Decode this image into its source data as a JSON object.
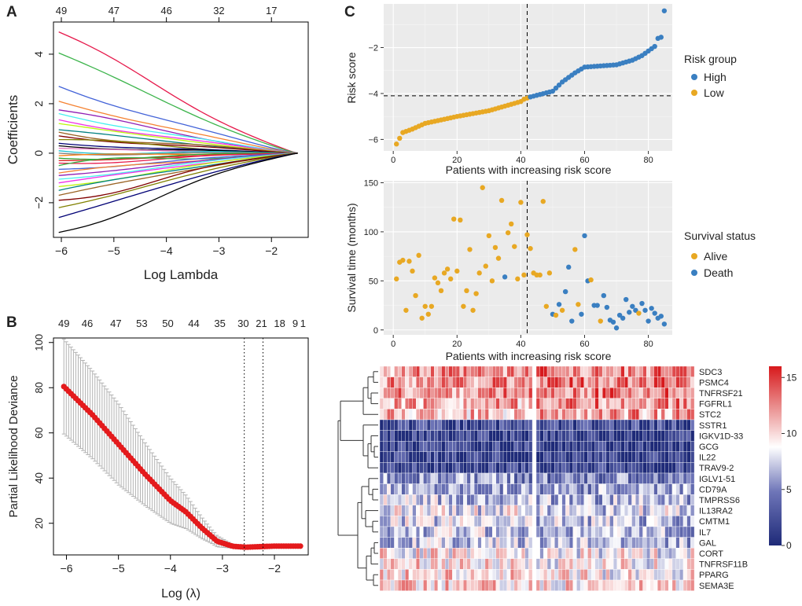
{
  "colors": {
    "coef_palette": [
      "#e6194b",
      "#3cb44b",
      "#4363d8",
      "#f58231",
      "#911eb4",
      "#46f0f0",
      "#f032e6",
      "#bcf60c",
      "#008080",
      "#9a6324",
      "#800000",
      "#808000",
      "#000075",
      "#000000",
      "#e377c2",
      "#17becf",
      "#7f7f7f",
      "#ff7f0e",
      "#2ca02c",
      "#d62728"
    ],
    "cv_point": "#e41a1c",
    "cv_bar": "#b3b3b3",
    "high": "#3a7fc1",
    "low": "#e8a823",
    "alive": "#e8a823",
    "death": "#3a7fc1",
    "heat_low": "#1e2a78",
    "heat_mid": "#ffffff",
    "heat_high": "#d7191c"
  },
  "chart_data": [
    {
      "id": "A",
      "type": "line",
      "panel_label": "A",
      "xlabel": "Log Lambda",
      "ylabel": "Coefficients",
      "xlim": [
        -6.15,
        -1.3
      ],
      "ylim": [
        -3.4,
        5.3
      ],
      "x_ticks": [
        -6,
        -5,
        -4,
        -3,
        -2
      ],
      "y_ticks": [
        -2,
        0,
        2,
        4
      ],
      "top_ticks": [
        {
          "x": -6,
          "label": "49"
        },
        {
          "x": -5,
          "label": "47"
        },
        {
          "x": -4,
          "label": "46"
        },
        {
          "x": -3,
          "label": "32"
        },
        {
          "x": -2,
          "label": "17"
        }
      ],
      "x_start": -6.05,
      "x_end": -1.5,
      "series_start_values": [
        4.9,
        4.05,
        2.7,
        2.1,
        1.75,
        1.6,
        1.35,
        1.2,
        0.95,
        0.85,
        0.7,
        0.55,
        0.4,
        0.3,
        0.2,
        0.1,
        0.0,
        -0.1,
        -0.2,
        -0.3,
        -0.4,
        -0.5,
        -0.65,
        -0.8,
        -0.9,
        -1.05,
        -1.2,
        -1.35,
        -1.5,
        -1.7,
        -1.9,
        -2.2,
        -2.6,
        -3.2
      ]
    },
    {
      "id": "B",
      "type": "scatter",
      "panel_label": "B",
      "xlabel": "Log (λ)",
      "ylabel": "Partial Likelihood Deviance",
      "xlim": [
        -6.25,
        -1.35
      ],
      "ylim": [
        6,
        102
      ],
      "x_ticks": [
        -6,
        -5,
        -4,
        -3,
        -2
      ],
      "y_ticks": [
        20,
        40,
        60,
        80,
        100
      ],
      "top_ticks": [
        {
          "x": -6.05,
          "label": "49"
        },
        {
          "x": -5.6,
          "label": "46"
        },
        {
          "x": -5.05,
          "label": "47"
        },
        {
          "x": -4.55,
          "label": "53"
        },
        {
          "x": -4.05,
          "label": "50"
        },
        {
          "x": -3.55,
          "label": "44"
        },
        {
          "x": -3.05,
          "label": "35"
        },
        {
          "x": -2.6,
          "label": "30"
        },
        {
          "x": -2.25,
          "label": "21"
        },
        {
          "x": -1.9,
          "label": "18"
        },
        {
          "x": -1.6,
          "label": "9"
        },
        {
          "x": -1.45,
          "label": "1"
        }
      ],
      "vlines": [
        -2.58,
        -2.22
      ],
      "curve": [
        {
          "x": -6.05,
          "y": 80.5
        },
        {
          "x": -5.5,
          "y": 68
        },
        {
          "x": -5.0,
          "y": 55
        },
        {
          "x": -4.5,
          "y": 42
        },
        {
          "x": -4.0,
          "y": 30
        },
        {
          "x": -3.7,
          "y": 25
        },
        {
          "x": -3.4,
          "y": 18
        },
        {
          "x": -3.1,
          "y": 12
        },
        {
          "x": -2.8,
          "y": 9.8
        },
        {
          "x": -2.55,
          "y": 9.4
        },
        {
          "x": -2.0,
          "y": 9.9
        },
        {
          "x": -1.5,
          "y": 9.9
        }
      ],
      "error_halfwidth": [
        {
          "x": -6.05,
          "e": 21
        },
        {
          "x": -5.0,
          "e": 18
        },
        {
          "x": -4.0,
          "e": 10
        },
        {
          "x": -3.2,
          "e": 3
        },
        {
          "x": -2.8,
          "e": 0.8
        },
        {
          "x": -1.5,
          "e": 0.6
        }
      ]
    },
    {
      "id": "C-risk",
      "type": "scatter",
      "panel_label": "C",
      "xlabel": "Patients with increasing risk score",
      "ylabel": "Risk score",
      "xlim": [
        -3,
        87.5
      ],
      "ylim": [
        -6.5,
        -0.1
      ],
      "x_ticks": [
        0,
        20,
        40,
        60,
        80
      ],
      "y_ticks": [
        -6,
        -4,
        -2
      ],
      "cutoff_x": 42,
      "cutoff_y": -4.1,
      "legend_title": "Risk group",
      "legend": [
        "High",
        "Low"
      ],
      "anchors": [
        {
          "i": 1,
          "y": -6.2
        },
        {
          "i": 2,
          "y": -5.95
        },
        {
          "i": 3,
          "y": -5.7
        },
        {
          "i": 6,
          "y": -5.55
        },
        {
          "i": 10,
          "y": -5.3
        },
        {
          "i": 20,
          "y": -5.0
        },
        {
          "i": 30,
          "y": -4.75
        },
        {
          "i": 40,
          "y": -4.35
        },
        {
          "i": 41,
          "y": -4.25
        },
        {
          "i": 43,
          "y": -4.15
        },
        {
          "i": 50,
          "y": -3.9
        },
        {
          "i": 53,
          "y": -3.5
        },
        {
          "i": 57,
          "y": -3.1
        },
        {
          "i": 60,
          "y": -2.85
        },
        {
          "i": 70,
          "y": -2.75
        },
        {
          "i": 75,
          "y": -2.55
        },
        {
          "i": 78,
          "y": -2.35
        },
        {
          "i": 80,
          "y": -2.15
        },
        {
          "i": 82,
          "y": -1.95
        },
        {
          "i": 83,
          "y": -1.6
        },
        {
          "i": 84,
          "y": -1.55
        },
        {
          "i": 85,
          "y": -0.4
        }
      ]
    },
    {
      "id": "C-survival",
      "type": "scatter",
      "xlabel": "Patients with increasing risk score",
      "ylabel": "Survival time (months)",
      "xlim": [
        -3,
        87.5
      ],
      "ylim": [
        -5,
        152
      ],
      "x_ticks": [
        0,
        20,
        40,
        60,
        80
      ],
      "y_ticks": [
        0,
        50,
        100,
        150
      ],
      "cutoff_x": 42,
      "legend_title": "Survival status",
      "legend": [
        "Alive",
        "Death"
      ],
      "points": [
        {
          "x": 1,
          "y": 52,
          "s": "Alive"
        },
        {
          "x": 2,
          "y": 69,
          "s": "Alive"
        },
        {
          "x": 3,
          "y": 71,
          "s": "Alive"
        },
        {
          "x": 4,
          "y": 20,
          "s": "Alive"
        },
        {
          "x": 5,
          "y": 70,
          "s": "Alive"
        },
        {
          "x": 6,
          "y": 60,
          "s": "Alive"
        },
        {
          "x": 7,
          "y": 35,
          "s": "Alive"
        },
        {
          "x": 8,
          "y": 76,
          "s": "Alive"
        },
        {
          "x": 9,
          "y": 12,
          "s": "Alive"
        },
        {
          "x": 10,
          "y": 24,
          "s": "Alive"
        },
        {
          "x": 11,
          "y": 16,
          "s": "Alive"
        },
        {
          "x": 12,
          "y": 24,
          "s": "Alive"
        },
        {
          "x": 13,
          "y": 53,
          "s": "Alive"
        },
        {
          "x": 14,
          "y": 48,
          "s": "Alive"
        },
        {
          "x": 15,
          "y": 40,
          "s": "Alive"
        },
        {
          "x": 16,
          "y": 58,
          "s": "Alive"
        },
        {
          "x": 17,
          "y": 62,
          "s": "Alive"
        },
        {
          "x": 18,
          "y": 52,
          "s": "Alive"
        },
        {
          "x": 19,
          "y": 113,
          "s": "Alive"
        },
        {
          "x": 20,
          "y": 60,
          "s": "Alive"
        },
        {
          "x": 21,
          "y": 112,
          "s": "Alive"
        },
        {
          "x": 22,
          "y": 24,
          "s": "Alive"
        },
        {
          "x": 23,
          "y": 40,
          "s": "Alive"
        },
        {
          "x": 24,
          "y": 82,
          "s": "Alive"
        },
        {
          "x": 25,
          "y": 20,
          "s": "Alive"
        },
        {
          "x": 26,
          "y": 37,
          "s": "Alive"
        },
        {
          "x": 27,
          "y": 58,
          "s": "Alive"
        },
        {
          "x": 28,
          "y": 145,
          "s": "Alive"
        },
        {
          "x": 29,
          "y": 65,
          "s": "Alive"
        },
        {
          "x": 30,
          "y": 96,
          "s": "Alive"
        },
        {
          "x": 31,
          "y": 50,
          "s": "Alive"
        },
        {
          "x": 32,
          "y": 84,
          "s": "Alive"
        },
        {
          "x": 33,
          "y": 73,
          "s": "Alive"
        },
        {
          "x": 34,
          "y": 132,
          "s": "Alive"
        },
        {
          "x": 35,
          "y": 54,
          "s": "Death"
        },
        {
          "x": 36,
          "y": 99,
          "s": "Alive"
        },
        {
          "x": 37,
          "y": 108,
          "s": "Alive"
        },
        {
          "x": 38,
          "y": 85,
          "s": "Alive"
        },
        {
          "x": 39,
          "y": 52,
          "s": "Alive"
        },
        {
          "x": 40,
          "y": 130,
          "s": "Alive"
        },
        {
          "x": 41,
          "y": 56,
          "s": "Alive"
        },
        {
          "x": 42,
          "y": 97,
          "s": "Alive"
        },
        {
          "x": 43,
          "y": 83,
          "s": "Alive"
        },
        {
          "x": 44,
          "y": 58,
          "s": "Alive"
        },
        {
          "x": 45,
          "y": 56,
          "s": "Alive"
        },
        {
          "x": 46,
          "y": 56,
          "s": "Alive"
        },
        {
          "x": 47,
          "y": 131,
          "s": "Alive"
        },
        {
          "x": 48,
          "y": 24,
          "s": "Alive"
        },
        {
          "x": 49,
          "y": 58,
          "s": "Alive"
        },
        {
          "x": 50,
          "y": 16,
          "s": "Death"
        },
        {
          "x": 51,
          "y": 15,
          "s": "Alive"
        },
        {
          "x": 52,
          "y": 26,
          "s": "Death"
        },
        {
          "x": 53,
          "y": 20,
          "s": "Alive"
        },
        {
          "x": 54,
          "y": 39,
          "s": "Death"
        },
        {
          "x": 55,
          "y": 64,
          "s": "Death"
        },
        {
          "x": 56,
          "y": 9,
          "s": "Death"
        },
        {
          "x": 57,
          "y": 82,
          "s": "Alive"
        },
        {
          "x": 58,
          "y": 26,
          "s": "Alive"
        },
        {
          "x": 59,
          "y": 16,
          "s": "Death"
        },
        {
          "x": 60,
          "y": 96,
          "s": "Death"
        },
        {
          "x": 61,
          "y": 50,
          "s": "Death"
        },
        {
          "x": 62,
          "y": 51,
          "s": "Alive"
        },
        {
          "x": 63,
          "y": 25,
          "s": "Death"
        },
        {
          "x": 64,
          "y": 25,
          "s": "Death"
        },
        {
          "x": 65,
          "y": 9,
          "s": "Alive"
        },
        {
          "x": 66,
          "y": 35,
          "s": "Death"
        },
        {
          "x": 67,
          "y": 23,
          "s": "Death"
        },
        {
          "x": 68,
          "y": 10,
          "s": "Death"
        },
        {
          "x": 69,
          "y": 8,
          "s": "Death"
        },
        {
          "x": 70,
          "y": 2,
          "s": "Death"
        },
        {
          "x": 71,
          "y": 15,
          "s": "Death"
        },
        {
          "x": 72,
          "y": 12,
          "s": "Death"
        },
        {
          "x": 73,
          "y": 31,
          "s": "Death"
        },
        {
          "x": 74,
          "y": 18,
          "s": "Death"
        },
        {
          "x": 75,
          "y": 24,
          "s": "Death"
        },
        {
          "x": 76,
          "y": 20,
          "s": "Death"
        },
        {
          "x": 77,
          "y": 17,
          "s": "Alive"
        },
        {
          "x": 78,
          "y": 27,
          "s": "Death"
        },
        {
          "x": 79,
          "y": 20,
          "s": "Death"
        },
        {
          "x": 80,
          "y": 9,
          "s": "Death"
        },
        {
          "x": 81,
          "y": 22,
          "s": "Death"
        },
        {
          "x": 82,
          "y": 17,
          "s": "Death"
        },
        {
          "x": 83,
          "y": 12,
          "s": "Death"
        },
        {
          "x": 84,
          "y": 14,
          "s": "Death"
        },
        {
          "x": 85,
          "y": 6,
          "s": "Death"
        }
      ]
    },
    {
      "id": "C-heatmap",
      "type": "heatmap",
      "genes": [
        "SDC3",
        "PSMC4",
        "TNFRSF21",
        "FGFRL1",
        "STC2",
        "SSTR1",
        "IGKV1D-33",
        "GCG",
        "IL22",
        "TRAV9-2",
        "IGLV1-51",
        "CD79A",
        "TMPRSS6",
        "IL13RA2",
        "CMTM1",
        "IL7",
        "GAL",
        "CORT",
        "TNFRSF11B",
        "PPARG",
        "SEMA3E"
      ],
      "row_means": [
        12.5,
        12.8,
        12.8,
        12.0,
        11.5,
        1.8,
        1.2,
        1.2,
        1.3,
        1.5,
        5.0,
        6.2,
        6.8,
        7.8,
        7.2,
        6.8,
        6.9,
        9.0,
        9.3,
        9.5,
        10.2
      ],
      "n_low": 42,
      "n_high": 43,
      "scale_min": 0,
      "scale_max": 16,
      "scale_ticks": [
        0,
        5,
        10,
        15
      ]
    }
  ]
}
